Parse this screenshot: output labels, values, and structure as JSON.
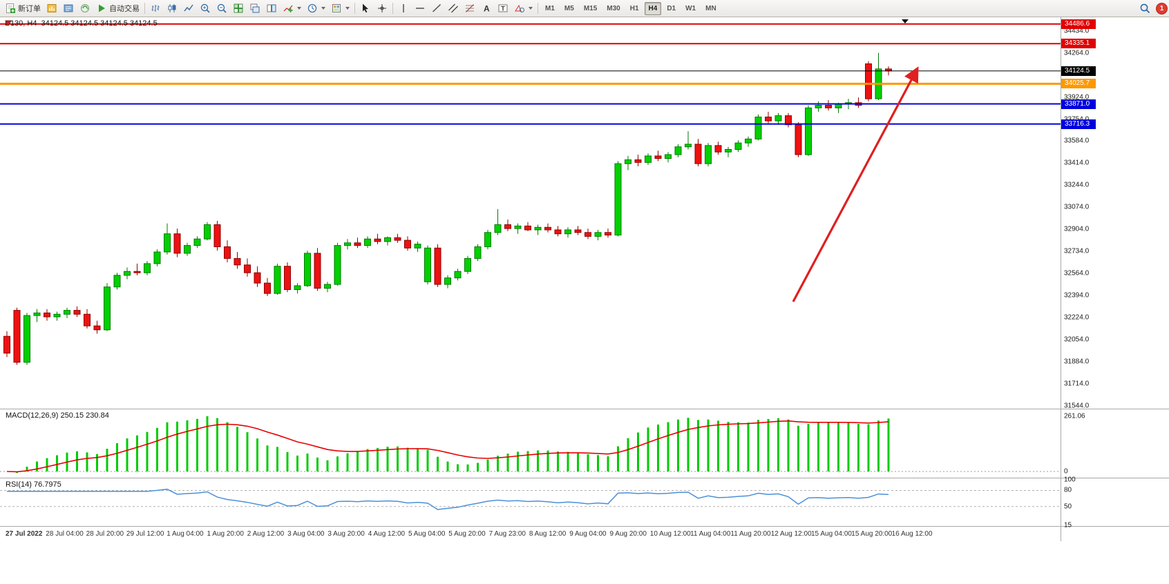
{
  "toolbar": {
    "new_order_label": "新订单",
    "autotrading_label": "自动交易",
    "timeframes": [
      "M1",
      "M5",
      "M15",
      "M30",
      "H1",
      "H4",
      "D1",
      "W1",
      "MN"
    ],
    "active_timeframe": "H4",
    "notification_count": "1"
  },
  "chart_data": {
    "type": "candlestick",
    "symbol": "D130",
    "period": "H4",
    "title": "D130, H4",
    "ohlc_readout": "34124.5 34124.5 34124.5 34124.5",
    "current_price": 34124.5,
    "y_axis_ticks": [
      "34434.0",
      "34264.0",
      "33924.0",
      "33754.0",
      "33584.0",
      "33414.0",
      "33244.0",
      "33074.0",
      "32904.0",
      "32734.0",
      "32564.0",
      "32394.0",
      "32224.0",
      "32054.0",
      "31884.0",
      "31714.0",
      "31544.0"
    ],
    "x_axis_labels": [
      "27 Jul 2022",
      "28 Jul 04:00",
      "28 Jul 20:00",
      "29 Jul 12:00",
      "1 Aug 04:00",
      "1 Aug 20:00",
      "2 Aug 12:00",
      "3 Aug 04:00",
      "3 Aug 20:00",
      "4 Aug 12:00",
      "5 Aug 04:00",
      "5 Aug 20:00",
      "7 Aug 23:00",
      "8 Aug 12:00",
      "9 Aug 04:00",
      "9 Aug 20:00",
      "10 Aug 12:00",
      "11 Aug 04:00",
      "11 Aug 20:00",
      "12 Aug 12:00",
      "15 Aug 04:00",
      "15 Aug 20:00",
      "16 Aug 12:00"
    ],
    "horizontal_lines": [
      {
        "name": "resistance-upper",
        "label": "34486.6",
        "price": 34486.6,
        "color": "#e00000",
        "width": 2
      },
      {
        "name": "resistance-lower",
        "label": "34335.1",
        "price": 34335.1,
        "color": "#e00000",
        "width": 2
      },
      {
        "name": "current-price",
        "label": "34124.5",
        "price": 34124.5,
        "color": "#000000",
        "width": 1
      },
      {
        "name": "orange-level",
        "label": "34025.7",
        "price": 34025.7,
        "color": "#ff9800",
        "width": 3
      },
      {
        "name": "support-upper",
        "label": "33871.0",
        "price": 33871.0,
        "color": "#0000dd",
        "width": 2
      },
      {
        "name": "support-lower",
        "label": "33716.3",
        "price": 33716.3,
        "color": "#0000dd",
        "width": 2
      }
    ],
    "annotations": [
      {
        "type": "arrow",
        "color": "#e01f1f",
        "direction": "up-right"
      }
    ],
    "indicators": [
      {
        "name": "MACD",
        "label": "MACD(12,26,9) 250.15 230.84",
        "axis_ticks": [
          "261.06",
          "0"
        ]
      },
      {
        "name": "RSI",
        "label": "RSI(14) 76.7975",
        "axis_ticks": [
          "100",
          "80",
          "50",
          "15"
        ],
        "levels": [
          80,
          50
        ]
      }
    ],
    "candles": [
      [
        32080,
        32120,
        31920,
        31950
      ],
      [
        32280,
        32300,
        31860,
        31880
      ],
      [
        31880,
        32260,
        31860,
        32240
      ],
      [
        32240,
        32290,
        32190,
        32260
      ],
      [
        32260,
        32290,
        32200,
        32230
      ],
      [
        32230,
        32270,
        32200,
        32250
      ],
      [
        32250,
        32300,
        32220,
        32280
      ],
      [
        32280,
        32310,
        32230,
        32250
      ],
      [
        32250,
        32290,
        32140,
        32160
      ],
      [
        32160,
        32200,
        32100,
        32130
      ],
      [
        32130,
        32490,
        32120,
        32460
      ],
      [
        32460,
        32570,
        32440,
        32550
      ],
      [
        32550,
        32610,
        32520,
        32580
      ],
      [
        32580,
        32640,
        32550,
        32570
      ],
      [
        32570,
        32660,
        32550,
        32640
      ],
      [
        32640,
        32750,
        32620,
        32730
      ],
      [
        32730,
        32950,
        32710,
        32870
      ],
      [
        32870,
        32910,
        32690,
        32720
      ],
      [
        32720,
        32800,
        32700,
        32780
      ],
      [
        32780,
        32850,
        32760,
        32830
      ],
      [
        32830,
        32960,
        32820,
        32940
      ],
      [
        32940,
        32970,
        32740,
        32770
      ],
      [
        32770,
        32820,
        32650,
        32680
      ],
      [
        32680,
        32730,
        32600,
        32630
      ],
      [
        32630,
        32680,
        32540,
        32570
      ],
      [
        32570,
        32620,
        32460,
        32490
      ],
      [
        32490,
        32530,
        32390,
        32410
      ],
      [
        32410,
        32640,
        32400,
        32620
      ],
      [
        32620,
        32650,
        32420,
        32440
      ],
      [
        32440,
        32490,
        32410,
        32470
      ],
      [
        32470,
        32740,
        32460,
        32720
      ],
      [
        32720,
        32760,
        32430,
        32450
      ],
      [
        32450,
        32500,
        32420,
        32480
      ],
      [
        32480,
        32800,
        32470,
        32780
      ],
      [
        32780,
        32830,
        32750,
        32800
      ],
      [
        32800,
        32840,
        32760,
        32780
      ],
      [
        32780,
        32850,
        32760,
        32830
      ],
      [
        32830,
        32870,
        32790,
        32810
      ],
      [
        32810,
        32850,
        32780,
        32840
      ],
      [
        32840,
        32870,
        32800,
        32820
      ],
      [
        32820,
        32850,
        32740,
        32760
      ],
      [
        32760,
        32810,
        32730,
        32790
      ],
      [
        32500,
        32780,
        32480,
        32760
      ],
      [
        32760,
        32790,
        32460,
        32480
      ],
      [
        32480,
        32550,
        32450,
        32530
      ],
      [
        32530,
        32600,
        32510,
        32580
      ],
      [
        32580,
        32700,
        32560,
        32680
      ],
      [
        32680,
        32790,
        32660,
        32770
      ],
      [
        32770,
        32900,
        32750,
        32880
      ],
      [
        32880,
        33060,
        32860,
        32940
      ],
      [
        32940,
        32980,
        32890,
        32910
      ],
      [
        32910,
        32950,
        32870,
        32930
      ],
      [
        32930,
        32960,
        32890,
        32900
      ],
      [
        32900,
        32940,
        32860,
        32920
      ],
      [
        32920,
        32950,
        32880,
        32900
      ],
      [
        32900,
        32930,
        32850,
        32870
      ],
      [
        32870,
        32920,
        32840,
        32900
      ],
      [
        32900,
        32930,
        32860,
        32880
      ],
      [
        32880,
        32910,
        32830,
        32850
      ],
      [
        32850,
        32900,
        32820,
        32880
      ],
      [
        32880,
        32910,
        32840,
        32860
      ],
      [
        32860,
        33430,
        32850,
        33410
      ],
      [
        33410,
        33470,
        33360,
        33440
      ],
      [
        33440,
        33480,
        33390,
        33420
      ],
      [
        33420,
        33490,
        33400,
        33470
      ],
      [
        33470,
        33510,
        33430,
        33450
      ],
      [
        33450,
        33500,
        33420,
        33480
      ],
      [
        33480,
        33560,
        33460,
        33540
      ],
      [
        33540,
        33660,
        33520,
        33560
      ],
      [
        33560,
        33600,
        33390,
        33410
      ],
      [
        33410,
        33570,
        33390,
        33550
      ],
      [
        33550,
        33580,
        33480,
        33500
      ],
      [
        33500,
        33540,
        33460,
        33520
      ],
      [
        33520,
        33590,
        33500,
        33570
      ],
      [
        33570,
        33620,
        33540,
        33600
      ],
      [
        33600,
        33790,
        33590,
        33770
      ],
      [
        33770,
        33810,
        33720,
        33740
      ],
      [
        33740,
        33800,
        33710,
        33780
      ],
      [
        33780,
        33800,
        33690,
        33710
      ],
      [
        33710,
        33730,
        33460,
        33480
      ],
      [
        33480,
        33860,
        33470,
        33840
      ],
      [
        33840,
        33890,
        33810,
        33860
      ],
      [
        33860,
        33900,
        33820,
        33840
      ],
      [
        33840,
        33880,
        33800,
        33870
      ],
      [
        33870,
        33910,
        33830,
        33880
      ],
      [
        33880,
        33920,
        33840,
        33860
      ],
      [
        34180,
        34200,
        33890,
        33910
      ],
      [
        33910,
        34264,
        33900,
        34140
      ],
      [
        34140,
        34160,
        34090,
        34124.5
      ]
    ]
  },
  "colors": {
    "bull": "#00d000",
    "bull_border": "#007a00",
    "bear": "#ee1111",
    "bear_border": "#8e0000",
    "macd_hist": "#00cc00",
    "macd_signal": "#e80000",
    "rsi_line": "#4a90d9",
    "line_red": "#e00000",
    "line_orange": "#ff9800",
    "line_blue": "#0000dd",
    "line_black": "#000000"
  }
}
